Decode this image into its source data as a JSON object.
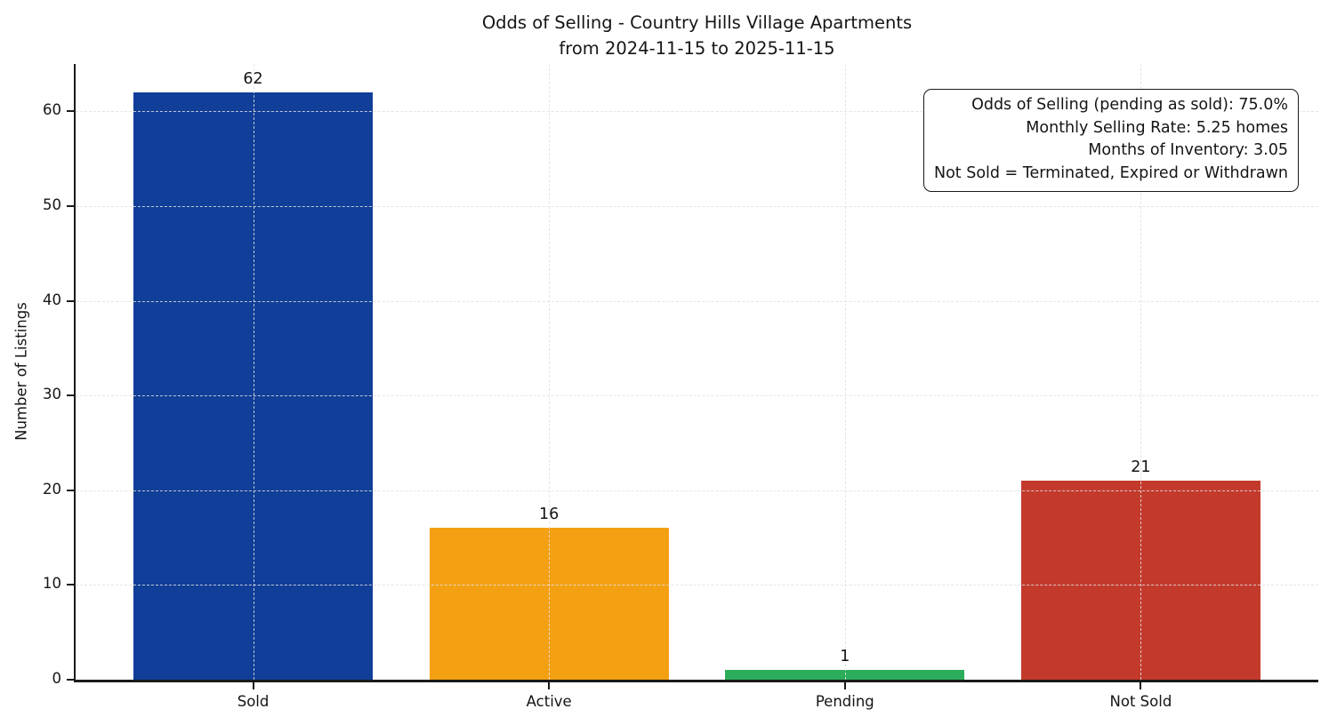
{
  "chart_data": {
    "type": "bar",
    "title_line1": "Odds of Selling - Country Hills Village Apartments",
    "title_line2": "from 2024-11-15 to 2025-11-15",
    "ylabel": "Number of Listings",
    "xlabel": "",
    "categories": [
      "Sold",
      "Active",
      "Pending",
      "Not Sold"
    ],
    "values": [
      62,
      16,
      1,
      21
    ],
    "bar_colors": [
      "#103e98",
      "#f4a013",
      "#2bad5b",
      "#c33a2c"
    ],
    "ylim": [
      0,
      65
    ],
    "yticks": [
      0,
      10,
      20,
      30,
      40,
      50,
      60
    ],
    "grid": "dashed horizontal and vertical gridlines drawn above bars",
    "legend": "none",
    "annotation_box": {
      "position": "top-right",
      "align": "right",
      "lines": [
        "Odds of Selling (pending as sold): 75.0%",
        "Monthly Selling Rate: 5.25 homes",
        "Months of Inventory: 3.05",
        "Not Sold = Terminated, Expired or Withdrawn"
      ]
    }
  }
}
